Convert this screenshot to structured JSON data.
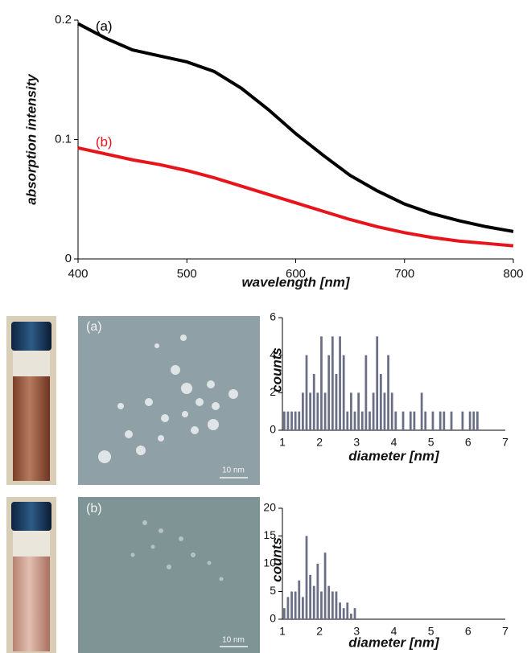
{
  "chart_data": [
    {
      "type": "line",
      "xlabel": "wavelength [nm]",
      "ylabel": "absorption intensity",
      "x": [
        400,
        425,
        450,
        475,
        500,
        525,
        550,
        575,
        600,
        625,
        650,
        675,
        700,
        725,
        750,
        775,
        800
      ],
      "series": [
        {
          "name": "(a)",
          "color": "#000000",
          "values": [
            0.197,
            0.185,
            0.175,
            0.17,
            0.165,
            0.157,
            0.143,
            0.125,
            0.105,
            0.087,
            0.07,
            0.057,
            0.046,
            0.038,
            0.032,
            0.027,
            0.023
          ]
        },
        {
          "name": "(b)",
          "color": "#e8141c",
          "values": [
            0.093,
            0.088,
            0.083,
            0.079,
            0.074,
            0.068,
            0.061,
            0.054,
            0.047,
            0.04,
            0.033,
            0.027,
            0.022,
            0.018,
            0.015,
            0.013,
            0.011
          ]
        }
      ],
      "xlim": [
        400,
        800
      ],
      "xticks": [
        400,
        500,
        600,
        700,
        800
      ],
      "ylim": [
        0,
        0.2
      ],
      "yticks": [
        0,
        0.1,
        0.2
      ]
    },
    {
      "type": "histogram",
      "xlabel": "diameter [nm]",
      "ylabel": "counts",
      "color": "#6b6f86",
      "bins": [
        1.0,
        1.1,
        1.2,
        1.3,
        1.4,
        1.5,
        1.6,
        1.7,
        1.8,
        1.9,
        2.0,
        2.1,
        2.2,
        2.3,
        2.4,
        2.5,
        2.6,
        2.7,
        2.8,
        2.9,
        3.0,
        3.1,
        3.2,
        3.3,
        3.4,
        3.5,
        3.6,
        3.7,
        3.8,
        3.9,
        4.0,
        4.1,
        4.2,
        4.3,
        4.4,
        4.5,
        4.6,
        4.7,
        4.8,
        4.9,
        5.0,
        5.1,
        5.2,
        5.3,
        5.4,
        5.5,
        5.6,
        5.7,
        5.8,
        5.9,
        6.0,
        6.1,
        6.2,
        6.3
      ],
      "counts": [
        1,
        1,
        1,
        1,
        1,
        2,
        4,
        2,
        3,
        2,
        5,
        2,
        4,
        5,
        3,
        5,
        4,
        1,
        2,
        1,
        2,
        1,
        4,
        1,
        2,
        5,
        3,
        2,
        4,
        2,
        1,
        0,
        1,
        0,
        1,
        1,
        0,
        2,
        1,
        0,
        1,
        0,
        1,
        1,
        0,
        1,
        0,
        0,
        1,
        0,
        1,
        1,
        1
      ],
      "xlim": [
        1,
        7
      ],
      "xticks": [
        1,
        2,
        3,
        4,
        5,
        6,
        7
      ],
      "ylim": [
        0,
        6
      ],
      "yticks": [
        0,
        2,
        4,
        6
      ]
    },
    {
      "type": "histogram",
      "xlabel": "diameter [nm]",
      "ylabel": "counts",
      "color": "#6b6f86",
      "bins": [
        1.0,
        1.1,
        1.2,
        1.3,
        1.4,
        1.5,
        1.6,
        1.7,
        1.8,
        1.9,
        2.0,
        2.1,
        2.2,
        2.3,
        2.4,
        2.5,
        2.6,
        2.7,
        2.8,
        2.9,
        3.0
      ],
      "counts": [
        2,
        4,
        5,
        5,
        7,
        4,
        15,
        8,
        6,
        10,
        5,
        12,
        6,
        5,
        5,
        3,
        2,
        3,
        1,
        2
      ],
      "xlim": [
        1,
        7
      ],
      "xticks": [
        1,
        2,
        3,
        4,
        5,
        6,
        7
      ],
      "ylim": [
        0,
        20
      ],
      "yticks": [
        0,
        5,
        10,
        15,
        20
      ]
    }
  ],
  "panels": [
    {
      "label": "(a)",
      "scale_bar": "10 nm"
    },
    {
      "label": "(b)",
      "scale_bar": "10 nm"
    }
  ]
}
